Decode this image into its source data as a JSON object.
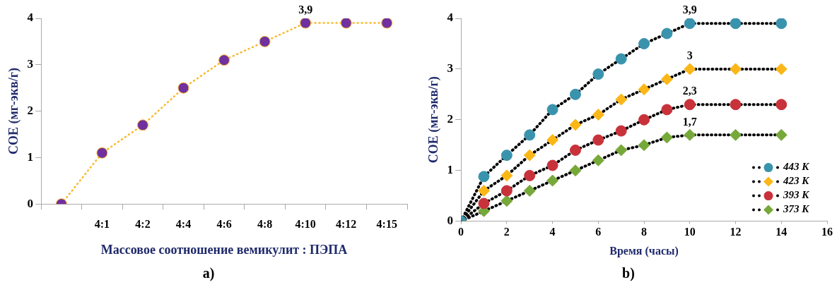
{
  "chart_data": [
    {
      "type": "line",
      "xlabel": "Массовое соотношение вемикулит : ПЭПА",
      "ylabel": "СОЕ (мг-экв/г)",
      "categories": [
        null,
        "4:1",
        "4:2",
        "4:4",
        "4:6",
        "4:8",
        "4:10",
        "4:12",
        "4:15"
      ],
      "series": [
        {
          "color": "#7030a0",
          "values": [
            0,
            1.1,
            1.7,
            2.5,
            3.1,
            3.5,
            3.9,
            3.9,
            3.9
          ]
        }
      ],
      "ylim": [
        0,
        4
      ],
      "yticks": [
        0,
        1,
        2,
        3,
        4
      ],
      "marker": "circle",
      "line_style": "dotted",
      "grid": false,
      "annotations": [
        {
          "text": "3,9",
          "x": "4:10",
          "y": 3.9
        },
        "a)"
      ]
    },
    {
      "type": "line",
      "xlabel": "Время (часы)",
      "ylabel": "СОЕ (мг-экв/г)",
      "x": [
        0,
        1,
        2,
        3,
        4,
        5,
        6,
        7,
        8,
        9,
        10,
        12,
        14
      ],
      "series": [
        {
          "name": "443 K",
          "color": "#3a93ad",
          "marker": "circle",
          "values": [
            0,
            0.88,
            1.3,
            1.7,
            2.2,
            2.5,
            2.9,
            3.2,
            3.5,
            3.7,
            3.9,
            3.9,
            3.9
          ]
        },
        {
          "name": "423 K",
          "color": "#fbb717",
          "marker": "diamond",
          "values": [
            0,
            0.6,
            0.9,
            1.3,
            1.6,
            1.9,
            2.1,
            2.4,
            2.6,
            2.8,
            3,
            3,
            3
          ]
        },
        {
          "name": "393 K",
          "color": "#c8323a",
          "marker": "circle",
          "values": [
            0,
            0.35,
            0.6,
            0.9,
            1.1,
            1.4,
            1.6,
            1.78,
            2,
            2.2,
            2.3,
            2.3,
            2.3
          ]
        },
        {
          "name": "373 K",
          "color": "#77a83a",
          "marker": "diamond",
          "values": [
            0,
            0.2,
            0.4,
            0.6,
            0.8,
            1,
            1.2,
            1.4,
            1.5,
            1.65,
            1.7,
            1.7,
            1.7
          ]
        }
      ],
      "xlim": [
        0,
        16
      ],
      "xticks": [
        0,
        2,
        4,
        6,
        8,
        10,
        12,
        14,
        16
      ],
      "ylim": [
        0,
        4
      ],
      "yticks": [
        0,
        1,
        2,
        3,
        4
      ],
      "line_style": "dotted",
      "grid": false,
      "legend": "bottom right",
      "annotations": [
        {
          "text": "3,9",
          "x": 10,
          "y": 3.9
        },
        {
          "text": "3",
          "x": 10,
          "y": 3
        },
        {
          "text": "2,3",
          "x": 10,
          "y": 2.3
        },
        {
          "text": "1,7",
          "x": 10,
          "y": 1.7
        },
        "b)"
      ]
    }
  ]
}
